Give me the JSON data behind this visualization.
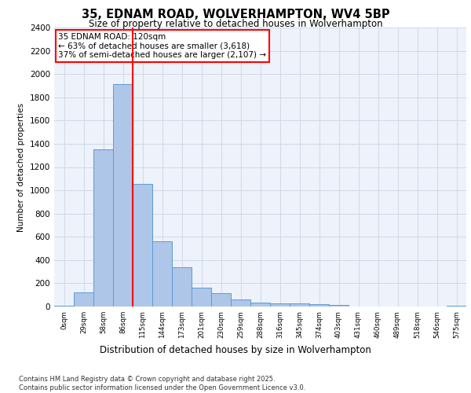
{
  "title1": "35, EDNAM ROAD, WOLVERHAMPTON, WV4 5BP",
  "title2": "Size of property relative to detached houses in Wolverhampton",
  "xlabel": "Distribution of detached houses by size in Wolverhampton",
  "ylabel": "Number of detached properties",
  "footer": "Contains HM Land Registry data © Crown copyright and database right 2025.\nContains public sector information licensed under the Open Government Licence v3.0.",
  "bin_labels": [
    "0sqm",
    "29sqm",
    "58sqm",
    "86sqm",
    "115sqm",
    "144sqm",
    "173sqm",
    "201sqm",
    "230sqm",
    "259sqm",
    "288sqm",
    "316sqm",
    "345sqm",
    "374sqm",
    "403sqm",
    "431sqm",
    "460sqm",
    "489sqm",
    "518sqm",
    "546sqm",
    "575sqm"
  ],
  "bar_values": [
    10,
    125,
    1355,
    1910,
    1055,
    560,
    335,
    165,
    115,
    60,
    35,
    30,
    25,
    20,
    15,
    2,
    2,
    2,
    2,
    2,
    10
  ],
  "bar_color": "#aec6e8",
  "bar_edge_color": "#5b9bd5",
  "grid_color": "#d0d8e8",
  "background_color": "#eef2fa",
  "vline_x_index": 4,
  "vline_color": "red",
  "annotation_text": "35 EDNAM ROAD: 120sqm\n← 63% of detached houses are smaller (3,618)\n37% of semi-detached houses are larger (2,107) →",
  "annotation_box_color": "white",
  "annotation_box_edge": "red",
  "ylim": [
    0,
    2400
  ],
  "yticks": [
    0,
    200,
    400,
    600,
    800,
    1000,
    1200,
    1400,
    1600,
    1800,
    2000,
    2200,
    2400
  ]
}
